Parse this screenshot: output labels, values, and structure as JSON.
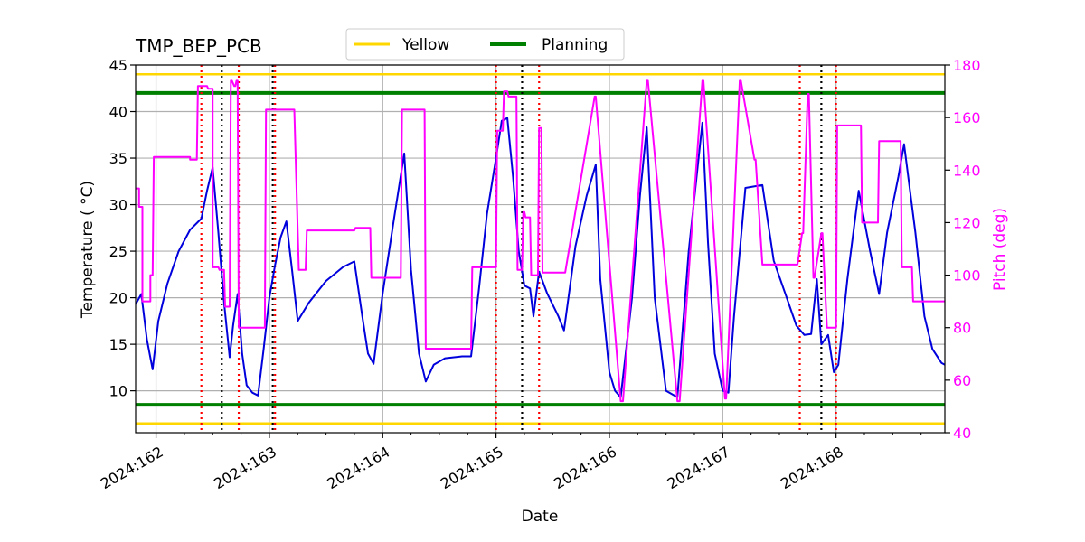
{
  "chart_data": {
    "type": "line",
    "title": "TMP_BEP_PCB",
    "xlabel": "Date",
    "ylabel": "Temperature ($^\\circ$C)",
    "ylabel_display": "Temperature ( °C)",
    "y2label": "Pitch (deg)",
    "xlim": [
      161.82,
      168.96
    ],
    "ylim": [
      5.5,
      45
    ],
    "y2lim": [
      40,
      180
    ],
    "x_ticks": [
      162,
      163,
      164,
      165,
      166,
      167,
      168
    ],
    "x_tick_labels": [
      "2024:162",
      "2024:163",
      "2024:164",
      "2024:165",
      "2024:166",
      "2024:167",
      "2024:168"
    ],
    "y_ticks": [
      10,
      15,
      20,
      25,
      30,
      35,
      40,
      45
    ],
    "y2_ticks": [
      40,
      60,
      80,
      100,
      120,
      140,
      160,
      180
    ],
    "grid": true,
    "legend_position": "top-center",
    "colors": {
      "temperature": "#0000dd",
      "pitch": "#ff00ff",
      "yellow": "#ffd700",
      "planning": "#008000",
      "red_marker": "#ff0000",
      "black_marker": "#000000",
      "grid": "#b0b0b0"
    },
    "limits": [
      {
        "name": "Yellow",
        "values": [
          44,
          6.5
        ],
        "color": "#ffd700"
      },
      {
        "name": "Planning",
        "values": [
          42,
          8.5
        ],
        "color": "#008000"
      }
    ],
    "red_markers": [
      162.4,
      162.73,
      163.05,
      165.0,
      165.38,
      167.68,
      168.0
    ],
    "black_markers": [
      162.58,
      163.03,
      165.23,
      167.87
    ],
    "series": [
      {
        "axis": "left",
        "color": "#0000dd",
        "x": [
          161.82,
          161.87,
          161.92,
          161.97,
          162.02,
          162.1,
          162.2,
          162.3,
          162.4,
          162.45,
          162.5,
          162.55,
          162.6,
          162.65,
          162.68,
          162.72,
          162.76,
          162.8,
          162.85,
          162.9,
          162.95,
          163.0,
          163.05,
          163.1,
          163.15,
          163.2,
          163.25,
          163.35,
          163.5,
          163.65,
          163.75,
          163.82,
          163.87,
          163.92,
          164.0,
          164.1,
          164.19,
          164.25,
          164.32,
          164.38,
          164.45,
          164.55,
          164.7,
          164.78,
          164.85,
          164.92,
          165.0,
          165.05,
          165.1,
          165.15,
          165.2,
          165.25,
          165.3,
          165.33,
          165.38,
          165.45,
          165.55,
          165.6,
          165.7,
          165.8,
          165.88,
          165.92,
          166.0,
          166.05,
          166.1,
          166.2,
          166.27,
          166.33,
          166.4,
          166.5,
          166.6,
          166.7,
          166.82,
          166.87,
          166.93,
          167.0,
          167.05,
          167.1,
          167.2,
          167.3,
          167.35,
          167.45,
          167.55,
          167.65,
          167.72,
          167.78,
          167.83,
          167.87,
          167.93,
          167.98,
          168.02,
          168.1,
          168.2,
          168.3,
          168.38,
          168.45,
          168.55,
          168.6,
          168.7,
          168.78,
          168.85,
          168.93,
          168.96
        ],
        "values": [
          19.3,
          20.4,
          15.5,
          12.3,
          17.5,
          21.5,
          25.0,
          27.3,
          28.5,
          31.5,
          34.0,
          27.0,
          19.5,
          13.6,
          17.0,
          20.4,
          14.0,
          10.6,
          9.8,
          9.5,
          14.5,
          20.0,
          23.5,
          26.5,
          28.2,
          23.0,
          17.5,
          19.5,
          21.8,
          23.3,
          23.9,
          18.0,
          14.0,
          12.9,
          20.5,
          28.5,
          35.5,
          23.0,
          14.0,
          11.0,
          12.8,
          13.5,
          13.7,
          13.7,
          21.0,
          29.0,
          35.0,
          39.0,
          39.3,
          33.0,
          25.0,
          21.3,
          21.0,
          18.0,
          22.8,
          20.5,
          18.0,
          16.5,
          25.5,
          31.0,
          34.3,
          22.0,
          12.0,
          10.0,
          9.3,
          20.0,
          31.0,
          38.3,
          20.0,
          10.0,
          9.3,
          25.0,
          38.8,
          26.0,
          14.0,
          10.0,
          9.8,
          18.0,
          31.8,
          32.0,
          32.1,
          24.0,
          20.5,
          17.0,
          16.0,
          16.1,
          22.0,
          15.0,
          16.0,
          12.0,
          12.8,
          22.0,
          31.5,
          25.0,
          20.4,
          27.0,
          33.0,
          36.5,
          27.0,
          18.0,
          14.5,
          13.0,
          12.8
        ]
      },
      {
        "axis": "right",
        "color": "#ff00ff",
        "x": [
          161.82,
          161.85,
          161.85,
          161.88,
          161.88,
          161.95,
          161.95,
          161.97,
          161.98,
          162.3,
          162.3,
          162.36,
          162.37,
          162.45,
          162.46,
          162.5,
          162.5,
          162.55,
          162.56,
          162.6,
          162.61,
          162.65,
          162.66,
          162.67,
          162.69,
          162.7,
          162.71,
          162.72,
          162.73,
          162.74,
          162.8,
          162.82,
          162.96,
          162.97,
          163.2,
          163.22,
          163.26,
          163.27,
          163.32,
          163.33,
          163.75,
          163.76,
          163.89,
          163.9,
          164.16,
          164.17,
          164.37,
          164.38,
          164.78,
          164.79,
          165.0,
          165.01,
          165.06,
          165.07,
          165.1,
          165.11,
          165.18,
          165.19,
          165.23,
          165.24,
          165.25,
          165.26,
          165.3,
          165.31,
          165.37,
          165.38,
          165.4,
          165.41,
          165.6,
          165.61,
          165.87,
          165.88,
          166.1,
          166.12,
          166.33,
          166.34,
          166.6,
          166.62,
          166.82,
          166.83,
          167.02,
          167.03,
          167.15,
          167.16,
          167.28,
          167.29,
          167.35,
          167.36,
          167.65,
          167.66,
          167.7,
          167.71,
          167.75,
          167.76,
          167.8,
          167.81,
          167.87,
          167.88,
          167.92,
          167.93,
          168.0,
          168.01,
          168.22,
          168.23,
          168.37,
          168.38,
          168.57,
          168.58,
          168.67,
          168.68,
          168.96
        ],
        "values": [
          133,
          133,
          126,
          126,
          90,
          90,
          100,
          100,
          145,
          145,
          144,
          144,
          172,
          172,
          171,
          171,
          103,
          103,
          102,
          102,
          88,
          88,
          174,
          174,
          172,
          172,
          174,
          174,
          80,
          80,
          80,
          80,
          80,
          163,
          163,
          163,
          102,
          102,
          102,
          117,
          117,
          118,
          118,
          99,
          99,
          163,
          163,
          72,
          72,
          103,
          103,
          155,
          155,
          170,
          170,
          168,
          168,
          102,
          102,
          124,
          124,
          122,
          122,
          100,
          100,
          156,
          156,
          101,
          101,
          101,
          168,
          168,
          52,
          52,
          174,
          174,
          52,
          52,
          174,
          174,
          53,
          53,
          174,
          174,
          144,
          144,
          104,
          104,
          104,
          104,
          116,
          116,
          169,
          169,
          99,
          99,
          116,
          116,
          80,
          80,
          80,
          157,
          157,
          120,
          120,
          151,
          151,
          103,
          103,
          90,
          90
        ]
      }
    ]
  },
  "legend": [
    {
      "label": "Yellow",
      "color": "#ffd700"
    },
    {
      "label": "Planning",
      "color": "#008000"
    }
  ]
}
